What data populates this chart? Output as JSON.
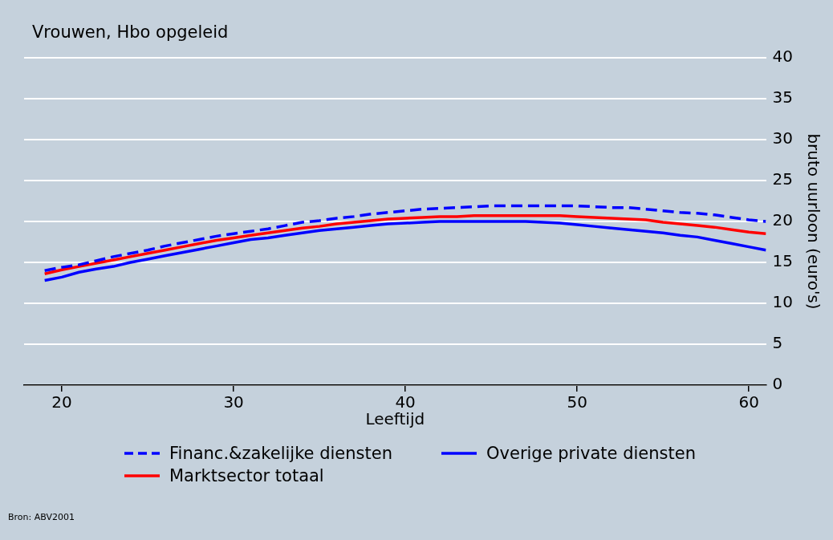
{
  "chart_data": {
    "type": "line",
    "title": "Vrouwen, Hbo opgeleid",
    "xlabel": "Leeftijd",
    "ylabel": "bruto uurloon (euro's)",
    "x": [
      19,
      20,
      21,
      22,
      23,
      24,
      25,
      26,
      27,
      28,
      29,
      30,
      31,
      32,
      33,
      34,
      35,
      36,
      37,
      38,
      39,
      40,
      41,
      42,
      43,
      44,
      45,
      46,
      47,
      48,
      49,
      50,
      51,
      52,
      53,
      54,
      55,
      56,
      57,
      58,
      59,
      60,
      61
    ],
    "series": [
      {
        "name": "Financ.&zakelijke diensten",
        "color": "#0000ff",
        "line_style": "dashed",
        "values": [
          14.0,
          14.4,
          14.7,
          15.2,
          15.7,
          16.1,
          16.5,
          17.0,
          17.4,
          17.8,
          18.2,
          18.5,
          18.8,
          19.1,
          19.5,
          19.9,
          20.1,
          20.4,
          20.6,
          20.9,
          21.1,
          21.3,
          21.5,
          21.6,
          21.7,
          21.8,
          21.9,
          21.9,
          21.9,
          21.9,
          21.9,
          21.9,
          21.8,
          21.7,
          21.7,
          21.5,
          21.3,
          21.1,
          21.0,
          20.8,
          20.5,
          20.2,
          20.0
        ]
      },
      {
        "name": "Overige private diensten",
        "color": "#0000ff",
        "line_style": "solid",
        "values": [
          12.8,
          13.2,
          13.8,
          14.2,
          14.5,
          15.0,
          15.4,
          15.8,
          16.2,
          16.6,
          17.0,
          17.4,
          17.8,
          18.0,
          18.3,
          18.6,
          18.9,
          19.1,
          19.3,
          19.5,
          19.7,
          19.8,
          19.9,
          20.0,
          20.0,
          20.0,
          20.0,
          20.0,
          20.0,
          19.9,
          19.8,
          19.6,
          19.4,
          19.2,
          19.0,
          18.8,
          18.6,
          18.3,
          18.1,
          17.7,
          17.3,
          16.9,
          16.5
        ]
      },
      {
        "name": "Marktsector totaal",
        "color": "#ff0000",
        "line_style": "solid",
        "values": [
          13.6,
          14.1,
          14.5,
          14.9,
          15.3,
          15.7,
          16.1,
          16.5,
          16.9,
          17.3,
          17.7,
          18.0,
          18.3,
          18.6,
          18.9,
          19.2,
          19.4,
          19.7,
          19.9,
          20.1,
          20.3,
          20.4,
          20.5,
          20.6,
          20.6,
          20.7,
          20.7,
          20.7,
          20.7,
          20.7,
          20.7,
          20.6,
          20.5,
          20.4,
          20.3,
          20.2,
          19.9,
          19.7,
          19.5,
          19.3,
          19.0,
          18.7,
          18.5
        ]
      }
    ],
    "xlim": [
      17.8,
      61
    ],
    "xticks": [
      20,
      30,
      40,
      50,
      60
    ],
    "ylim": [
      0,
      40
    ],
    "yticks": [
      0,
      5,
      10,
      15,
      20,
      25,
      30,
      35,
      40
    ],
    "grid": "y",
    "legend": "bottom",
    "marker": "none",
    "annotations": [
      "Bron: ABV2001"
    ]
  }
}
